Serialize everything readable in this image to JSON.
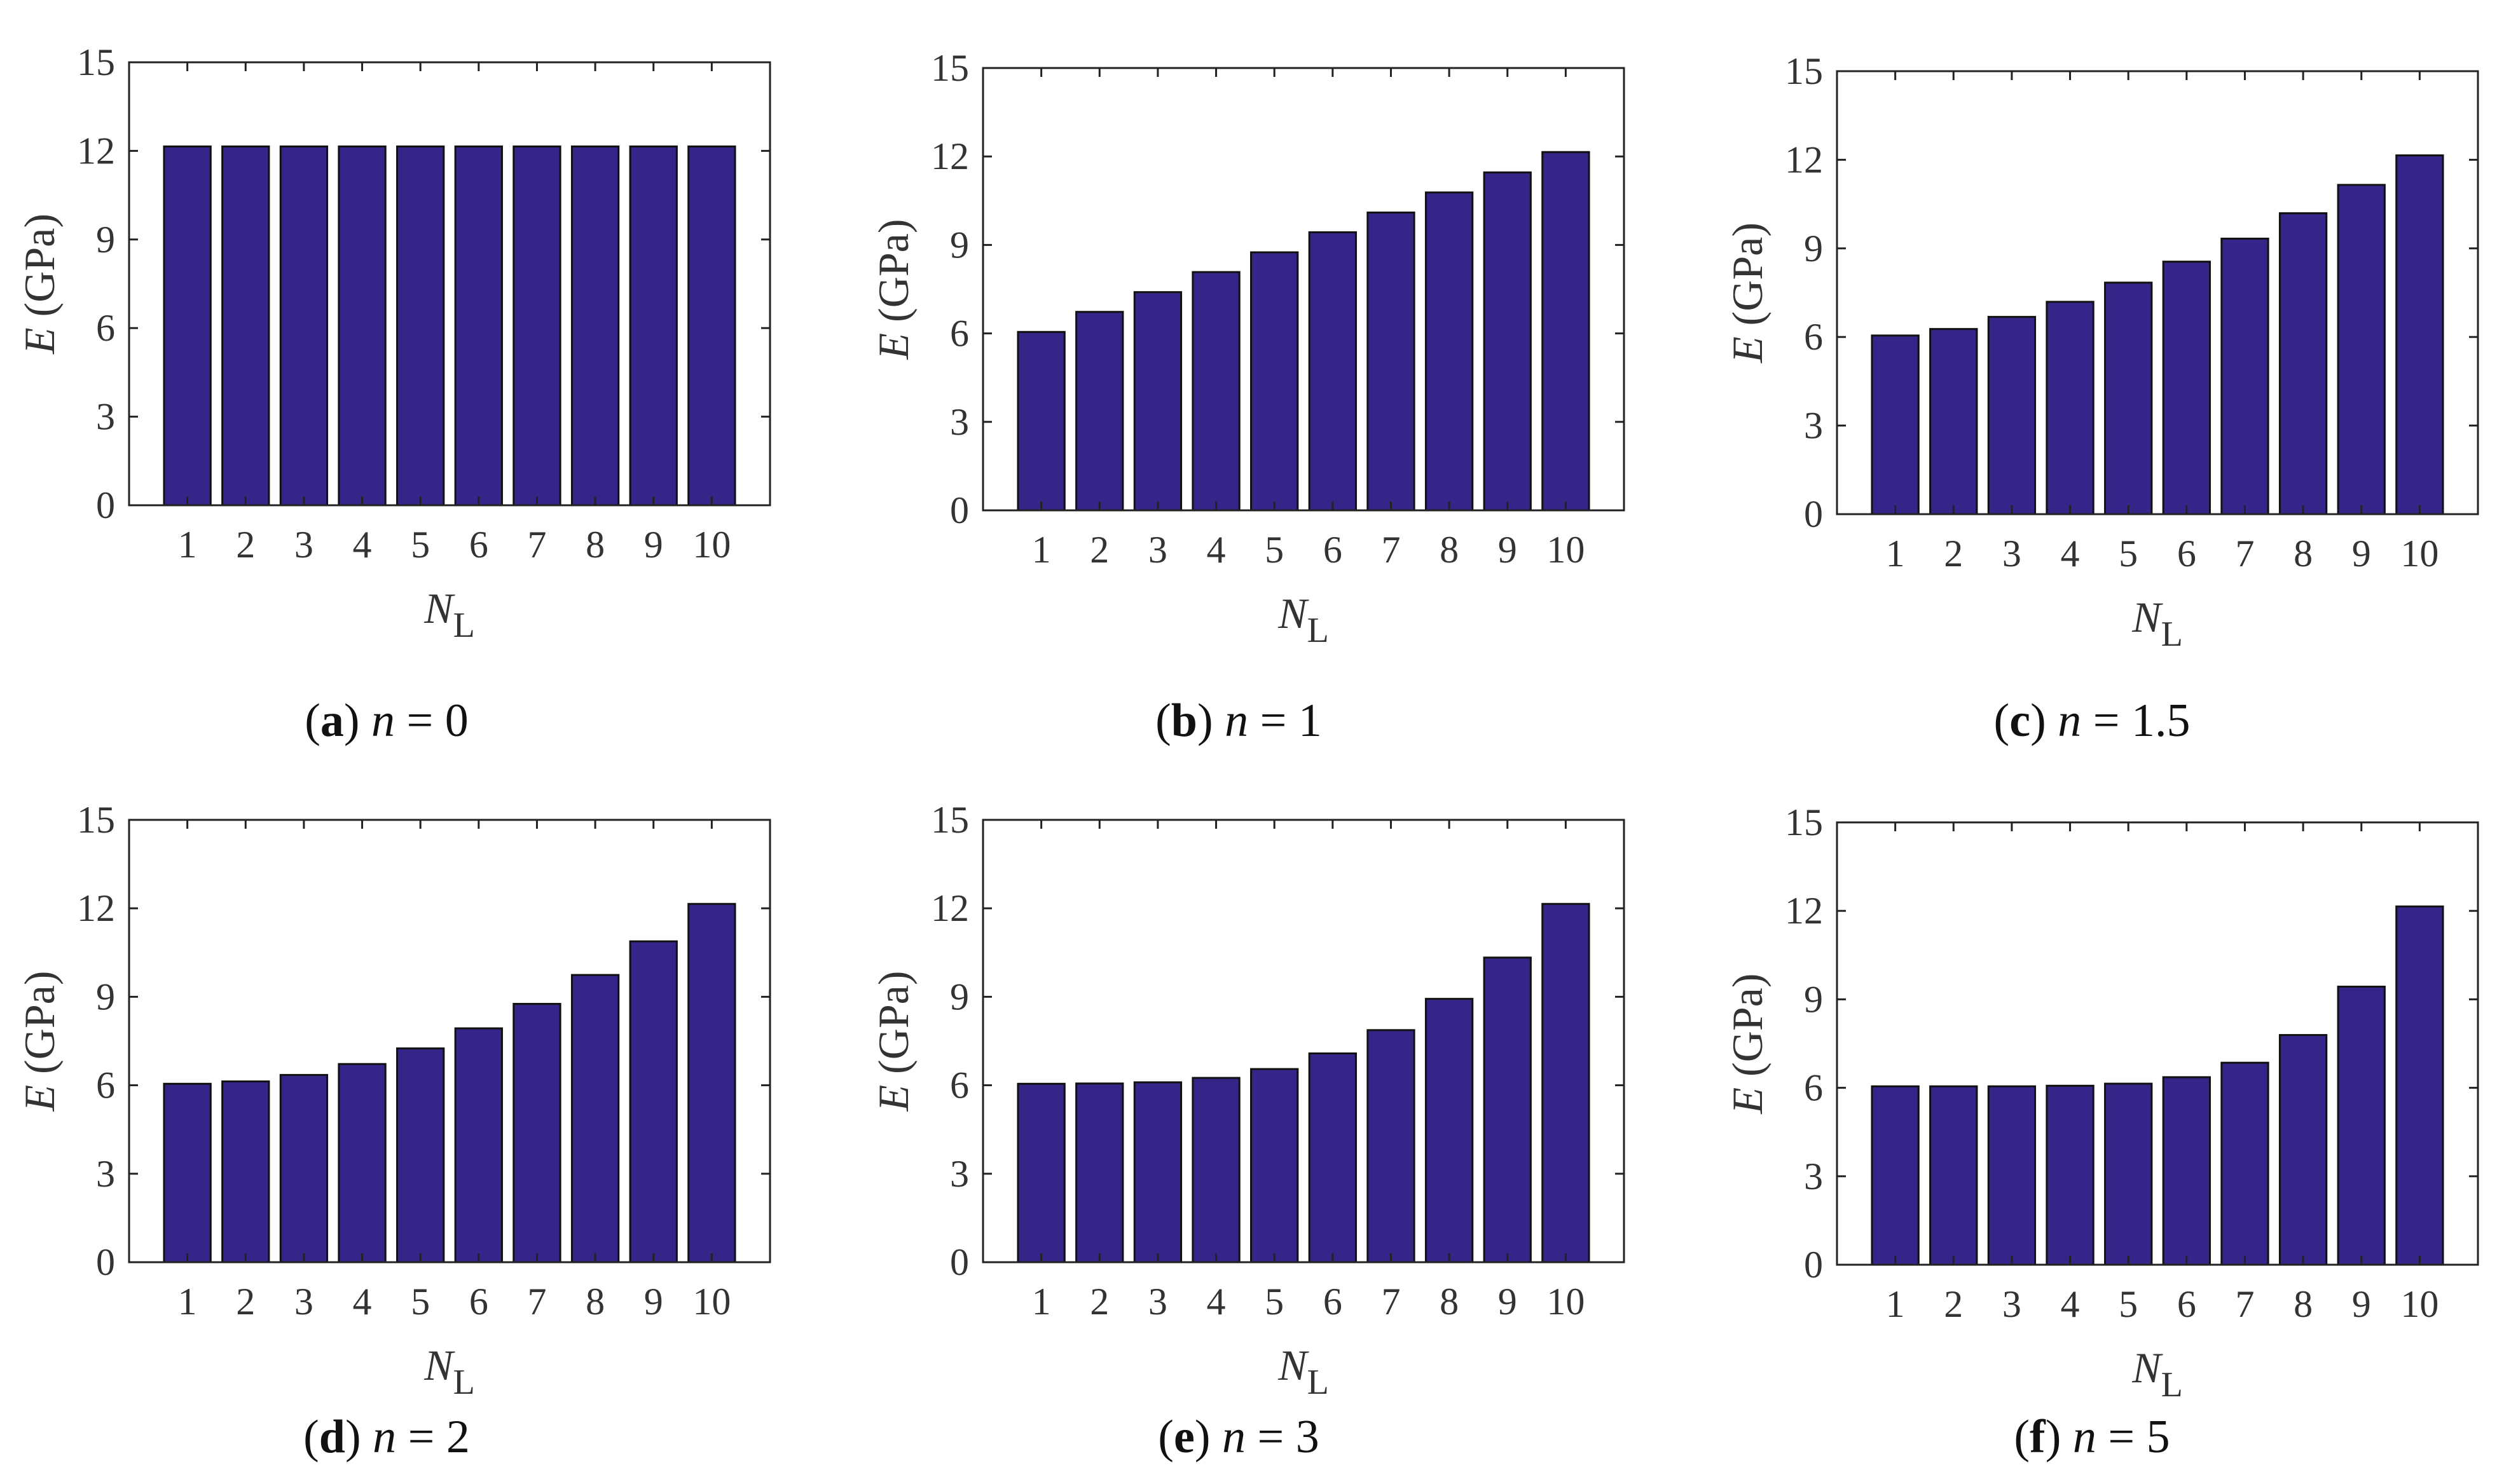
{
  "chart_data": [
    {
      "type": "bar",
      "panel": "a",
      "n": "0",
      "categories": [
        "1",
        "2",
        "3",
        "4",
        "5",
        "6",
        "7",
        "8",
        "9",
        "10"
      ],
      "values": [
        12.15,
        12.15,
        12.15,
        12.15,
        12.15,
        12.15,
        12.15,
        12.15,
        12.15,
        12.15
      ],
      "ylabel_var": "E",
      "ylabel_unit": "(GPa)",
      "xlabel_var": "N",
      "xlabel_sub": "L",
      "ylim": [
        0,
        15
      ],
      "yticks": [
        "0",
        "3",
        "6",
        "9",
        "12",
        "15"
      ],
      "color": "#352588"
    },
    {
      "type": "bar",
      "panel": "b",
      "n": "1",
      "categories": [
        "1",
        "2",
        "3",
        "4",
        "5",
        "6",
        "7",
        "8",
        "9",
        "10"
      ],
      "values": [
        6.05,
        6.73,
        7.4,
        8.08,
        8.75,
        9.43,
        10.1,
        10.78,
        11.46,
        12.15
      ],
      "ylabel_var": "E",
      "ylabel_unit": "(GPa)",
      "xlabel_var": "N",
      "xlabel_sub": "L",
      "ylim": [
        0,
        15
      ],
      "yticks": [
        "0",
        "3",
        "6",
        "9",
        "12",
        "15"
      ],
      "color": "#352588"
    },
    {
      "type": "bar",
      "panel": "c",
      "n": "1.5",
      "categories": [
        "1",
        "2",
        "3",
        "4",
        "5",
        "6",
        "7",
        "8",
        "9",
        "10"
      ],
      "values": [
        6.05,
        6.27,
        6.68,
        7.19,
        7.84,
        8.55,
        9.33,
        10.19,
        11.15,
        12.15
      ],
      "ylabel_var": "E",
      "ylabel_unit": "(GPa)",
      "xlabel_var": "N",
      "xlabel_sub": "L",
      "ylim": [
        0,
        15
      ],
      "yticks": [
        "0",
        "3",
        "6",
        "9",
        "12",
        "15"
      ],
      "color": "#352588"
    },
    {
      "type": "bar",
      "panel": "d",
      "n": "2",
      "categories": [
        "1",
        "2",
        "3",
        "4",
        "5",
        "6",
        "7",
        "8",
        "9",
        "10"
      ],
      "values": [
        6.05,
        6.13,
        6.35,
        6.72,
        7.25,
        7.93,
        8.76,
        9.74,
        10.88,
        12.15
      ],
      "ylabel_var": "E",
      "ylabel_unit": "(GPa)",
      "xlabel_var": "N",
      "xlabel_sub": "L",
      "ylim": [
        0,
        15
      ],
      "yticks": [
        "0",
        "3",
        "6",
        "9",
        "12",
        "15"
      ],
      "color": "#352588"
    },
    {
      "type": "bar",
      "panel": "e",
      "n": "3",
      "categories": [
        "1",
        "2",
        "3",
        "4",
        "5",
        "6",
        "7",
        "8",
        "9",
        "10"
      ],
      "values": [
        6.05,
        6.06,
        6.1,
        6.25,
        6.55,
        7.08,
        7.87,
        8.93,
        10.33,
        12.15
      ],
      "ylabel_var": "E",
      "ylabel_unit": "(GPa)",
      "xlabel_var": "N",
      "xlabel_sub": "L",
      "ylim": [
        0,
        15
      ],
      "yticks": [
        "0",
        "3",
        "6",
        "9",
        "12",
        "15"
      ],
      "color": "#352588"
    },
    {
      "type": "bar",
      "panel": "f",
      "n": "5",
      "categories": [
        "1",
        "2",
        "3",
        "4",
        "5",
        "6",
        "7",
        "8",
        "9",
        "10"
      ],
      "values": [
        6.05,
        6.05,
        6.05,
        6.07,
        6.14,
        6.36,
        6.85,
        7.79,
        9.43,
        12.15
      ],
      "ylabel_var": "E",
      "ylabel_unit": "(GPa)",
      "xlabel_var": "N",
      "xlabel_sub": "L",
      "ylim": [
        0,
        15
      ],
      "yticks": [
        "0",
        "3",
        "6",
        "9",
        "12",
        "15"
      ],
      "color": "#352588"
    }
  ],
  "captions": [
    {
      "letter": "a",
      "var": "n",
      "eq": " = 0"
    },
    {
      "letter": "b",
      "var": "n",
      "eq": " = 1"
    },
    {
      "letter": "c",
      "var": "n",
      "eq": " = 1.5"
    },
    {
      "letter": "d",
      "var": "n",
      "eq": " = 2"
    },
    {
      "letter": "e",
      "var": "n",
      "eq": " = 3"
    },
    {
      "letter": "f",
      "var": "n",
      "eq": " = 5"
    }
  ]
}
